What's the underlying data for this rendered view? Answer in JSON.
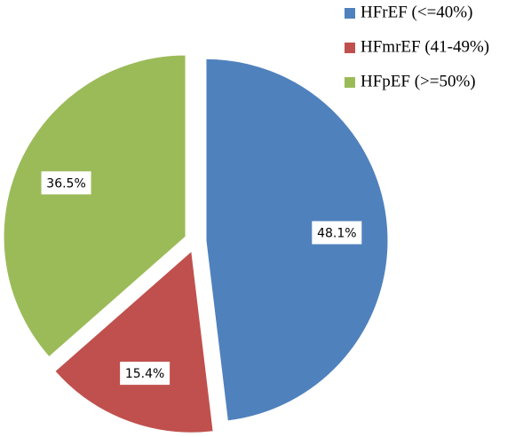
{
  "chart_data": {
    "type": "pie",
    "categories": [
      "HFrEF (<=40%)",
      "HFmrEF (41-49%)",
      "HFpEF (>=50%)"
    ],
    "values": [
      48.1,
      15.4,
      36.5
    ],
    "value_labels": [
      "48.1%",
      "15.4%",
      "36.5%"
    ],
    "colors": [
      "#4f81bd",
      "#c0504d",
      "#9bbb59"
    ],
    "legend": "top-right"
  }
}
